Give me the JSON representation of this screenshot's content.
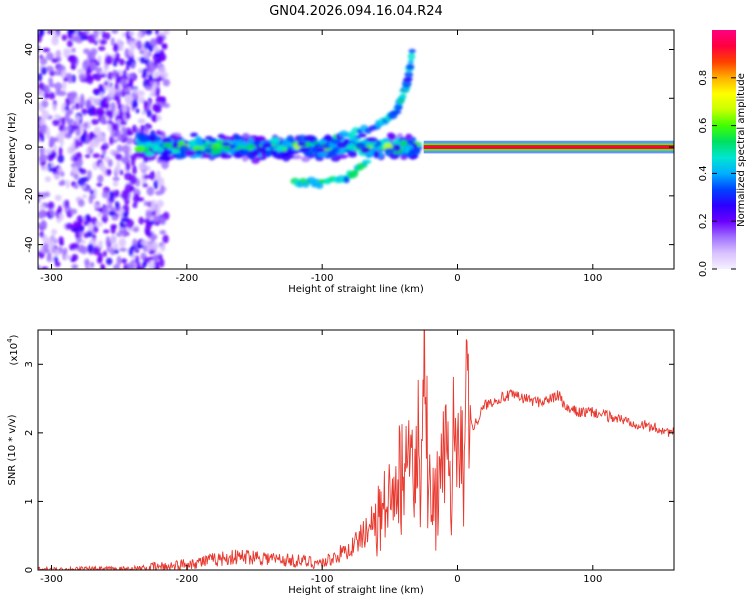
{
  "title": "GN04.2026.094.16.04.R24",
  "colors": {
    "line": "#e8392f",
    "spectral_ramp": [
      "#f5f0ff",
      "#d9c2ff",
      "#a070ff",
      "#6a00ff",
      "#2b00ff",
      "#0044ff",
      "#00b0ff",
      "#00e5d0",
      "#00e060",
      "#40ff00",
      "#c8ff00",
      "#ffff00",
      "#ffb000",
      "#ff4000",
      "#ff0040",
      "#ff0080"
    ]
  },
  "chart_data": [
    {
      "type": "heatmap",
      "xlabel": "Height of straight line (km)",
      "ylabel": "Frequency (Hz)",
      "xlim": [
        -310,
        160
      ],
      "ylim": [
        -50,
        48
      ],
      "xticks": [
        -300,
        -200,
        -100,
        0,
        100
      ],
      "xtick_labels": [
        "-300",
        "-200",
        "-100",
        "0",
        "100"
      ],
      "yticks": [
        -40,
        -20,
        0,
        20,
        40
      ],
      "ytick_labels": [
        "-40",
        "-20",
        "0",
        "20",
        "40"
      ],
      "colorbar": {
        "label": "Normalized spectral amplitude",
        "range": [
          0,
          1
        ],
        "ticks": [
          0.0,
          0.2,
          0.4,
          0.6,
          0.8
        ],
        "tick_labels": [
          "0.0",
          "0.2",
          "0.4",
          "0.6",
          "0.8"
        ]
      },
      "features": [
        {
          "description": "scattered noise",
          "x_range": [
            -310,
            -215
          ],
          "freq_range": [
            -50,
            48
          ],
          "amplitude": 0.15
        },
        {
          "description": "broad dispersed band",
          "x_range": [
            -235,
            -30
          ],
          "freq_center": 0,
          "freq_halfwidth": 6,
          "amplitude": 0.45
        },
        {
          "description": "branch rising",
          "points": [
            [
              -90,
              4
            ],
            [
              -60,
              8
            ],
            [
              -45,
              15
            ],
            [
              -38,
              24
            ],
            [
              -33,
              40
            ]
          ],
          "amplitude": 0.4
        },
        {
          "description": "branch falling",
          "points": [
            [
              -120,
              -14
            ],
            [
              -100,
              -15
            ],
            [
              -80,
              -12
            ],
            [
              -65,
              -5
            ]
          ],
          "amplitude": 0.45
        },
        {
          "description": "narrow line",
          "x_range": [
            -25,
            160
          ],
          "freq_center": 0,
          "freq_halfwidth": 1,
          "amplitude": 0.95
        }
      ]
    },
    {
      "type": "line",
      "xlabel": "Height of straight line (km)",
      "ylabel": "SNR (10 * v/v)",
      "y_multiplier": "(x10",
      "y_multiplier_exp": "4",
      "y_multiplier_close": ")",
      "xlim": [
        -310,
        160
      ],
      "ylim": [
        0,
        3.5
      ],
      "xticks": [
        -300,
        -200,
        -100,
        0,
        100
      ],
      "xtick_labels": [
        "-300",
        "-200",
        "-100",
        "0",
        "100"
      ],
      "yticks": [
        0,
        1,
        2,
        3
      ],
      "ytick_labels": [
        "0",
        "1",
        "2",
        "3"
      ],
      "series": [
        {
          "x": [
            -310,
            -280,
            -250,
            -230,
            -210,
            -190,
            -170,
            -150,
            -130,
            -110,
            -100,
            -90,
            -80,
            -70,
            -60,
            -50,
            -45,
            -40,
            -35,
            -30,
            -27,
            -25,
            -22,
            -20,
            -18,
            -15,
            -10,
            -5,
            0,
            5,
            8,
            10,
            12,
            15,
            20,
            25,
            30,
            40,
            50,
            60,
            70,
            75,
            80,
            90,
            100,
            110,
            120,
            130,
            140,
            150,
            160
          ],
          "y": [
            0.0,
            0.01,
            0.01,
            0.03,
            0.06,
            0.12,
            0.18,
            0.2,
            0.15,
            0.12,
            0.1,
            0.2,
            0.3,
            0.5,
            0.8,
            1.1,
            1.5,
            1.6,
            1.8,
            1.9,
            2.6,
            3.5,
            2.4,
            1.4,
            1.1,
            1.5,
            1.9,
            2.0,
            2.1,
            2.3,
            3.05,
            2.2,
            2.1,
            2.2,
            2.4,
            2.45,
            2.5,
            2.55,
            2.5,
            2.45,
            2.5,
            2.55,
            2.35,
            2.3,
            2.3,
            2.25,
            2.2,
            2.15,
            2.1,
            2.05,
            2.0
          ]
        }
      ]
    }
  ]
}
